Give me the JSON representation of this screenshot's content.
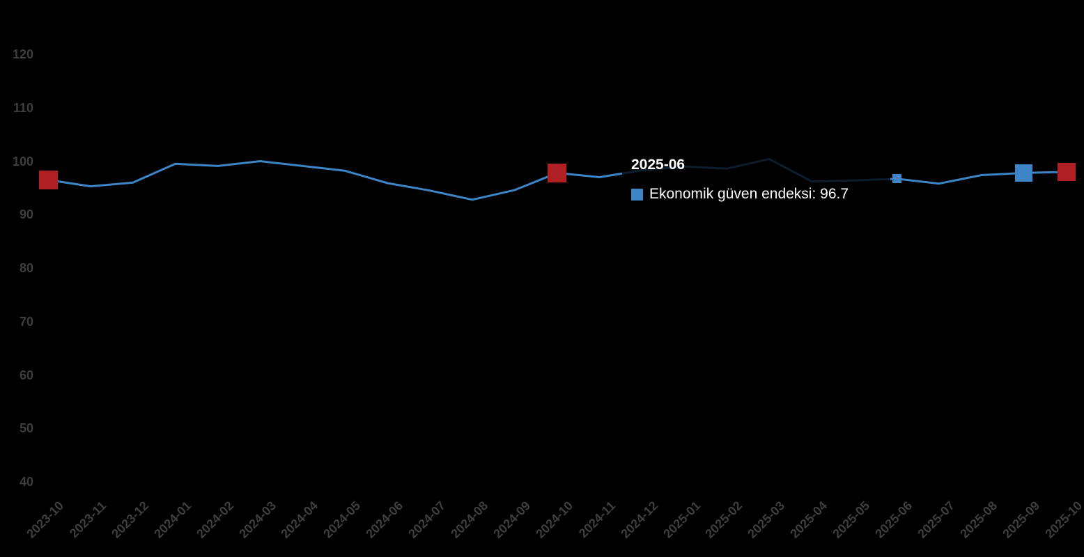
{
  "chart_data": {
    "type": "line",
    "title": "",
    "xlabel": "",
    "ylabel": "",
    "categories": [
      "2023-10",
      "2023-11",
      "2023-12",
      "2024-01",
      "2024-02",
      "2024-03",
      "2024-04",
      "2024-05",
      "2024-06",
      "2024-07",
      "2024-08",
      "2024-09",
      "2024-10",
      "2024-11",
      "2024-12",
      "2025-01",
      "2025-02",
      "2025-03",
      "2025-04",
      "2025-05",
      "2025-06",
      "2025-07",
      "2025-08",
      "2025-09",
      "2025-10"
    ],
    "series": [
      {
        "name": "Ekonomik güven endeksi",
        "color": "#3d85c6",
        "values": [
          96.5,
          95.3,
          96.0,
          99.5,
          99.1,
          100.0,
          99.1,
          98.2,
          95.9,
          94.5,
          92.8,
          94.6,
          97.8,
          97.0,
          98.3,
          99.0,
          98.6,
          100.4,
          96.2,
          96.4,
          96.7,
          95.8,
          97.4,
          97.8,
          98.0
        ]
      }
    ],
    "y_ticks": [
      40,
      50,
      60,
      70,
      80,
      90,
      100,
      110,
      120
    ],
    "ylim": [
      40,
      120
    ],
    "grid": false,
    "legend_position": "none",
    "markers": [
      {
        "category": "2023-10",
        "index": 0,
        "color": "#b01f24",
        "size": 27
      },
      {
        "category": "2024-10",
        "index": 12,
        "color": "#b01f24",
        "size": 27
      },
      {
        "category": "2025-06",
        "index": 20,
        "color": "#3d85c6",
        "size": 13
      },
      {
        "category": "2025-09",
        "index": 23,
        "color": "#3d85c6",
        "size": 25
      },
      {
        "category": "2025-10",
        "index": 24,
        "color": "#b01f24",
        "size": 26
      }
    ],
    "colors": {
      "background": "#000000",
      "axis_label": "#3e3e3e",
      "line": "#3d85c6",
      "marker_red": "#b01f24",
      "marker_blue": "#3d85c6",
      "tooltip_text": "#ffffff"
    }
  },
  "tooltip": {
    "title": "2025-06",
    "label_text": "Ekonomik güven endeksi: 96.7",
    "value": "96.7",
    "swatch_color": "#3d85c6"
  }
}
